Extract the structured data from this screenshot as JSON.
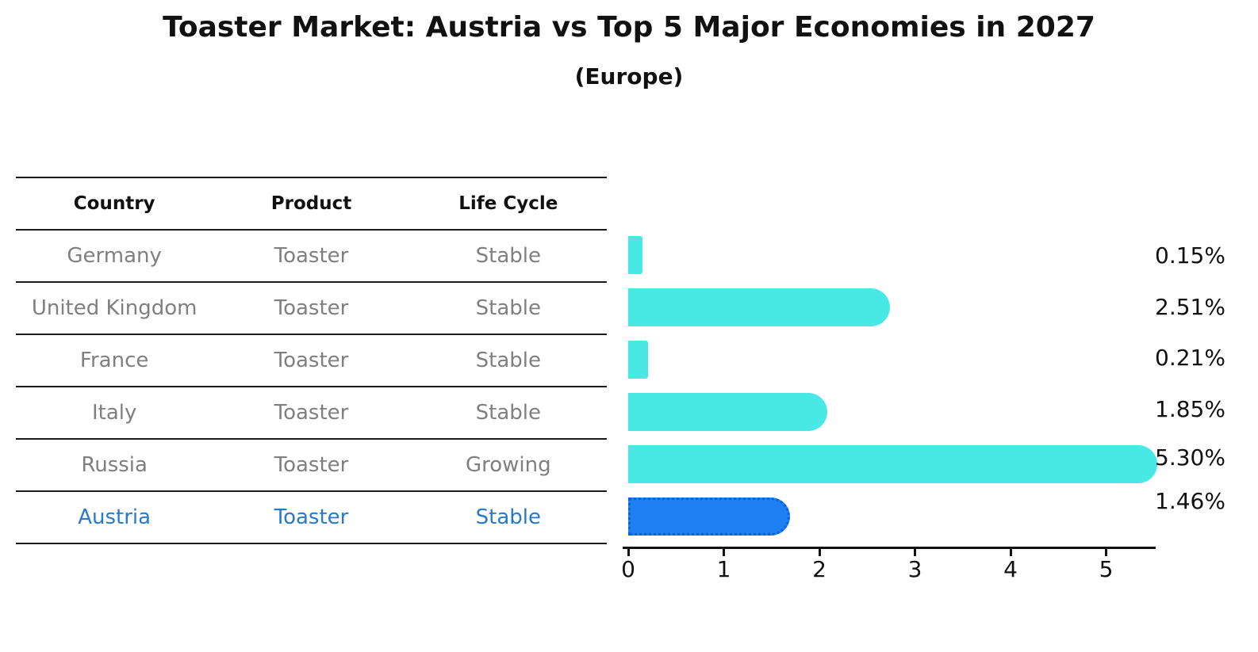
{
  "chart_data": {
    "type": "bar",
    "orientation": "horizontal",
    "title": "Toaster Market: Austria vs Top 5 Major Economies in 2027",
    "subtitle": "(Europe)",
    "categories": [
      "Germany",
      "United Kingdom",
      "France",
      "Italy",
      "Russia",
      "Austria"
    ],
    "values": [
      0.15,
      2.51,
      0.21,
      1.85,
      5.3,
      1.46
    ],
    "value_labels": [
      "0.15%",
      "2.51%",
      "0.21%",
      "1.85%",
      "5.30%",
      "1.46%"
    ],
    "x_ticks": [
      "0",
      "1",
      "2",
      "3",
      "4",
      "5"
    ],
    "xlim": [
      0,
      5.55
    ],
    "grid": false,
    "legend": "none",
    "bar_color": "#48e8e4",
    "highlight_color": "#1e80f0",
    "highlight_border_color": "#0c63d6",
    "highlight_index": 5,
    "highlight_text_color": "#2979c9",
    "axis_color": "#111111"
  },
  "table": {
    "columns": [
      "Country",
      "Product",
      "Life Cycle"
    ],
    "rows": [
      {
        "country": "Germany",
        "product": "Toaster",
        "life_cycle": "Stable",
        "value_label": "0.15%",
        "highlight": false
      },
      {
        "country": "United Kingdom",
        "product": "Toaster",
        "life_cycle": "Stable",
        "value_label": "2.51%",
        "highlight": false
      },
      {
        "country": "France",
        "product": "Toaster",
        "life_cycle": "Stable",
        "value_label": "0.21%",
        "highlight": false
      },
      {
        "country": "Italy",
        "product": "Toaster",
        "life_cycle": "Stable",
        "value_label": "1.85%",
        "highlight": false
      },
      {
        "country": "Russia",
        "product": "Toaster",
        "life_cycle": "Growing",
        "value_label": "5.30%",
        "highlight": false
      },
      {
        "country": "Austria",
        "product": "Toaster",
        "life_cycle": "Stable",
        "value_label": "1.46%",
        "highlight": true
      }
    ]
  }
}
